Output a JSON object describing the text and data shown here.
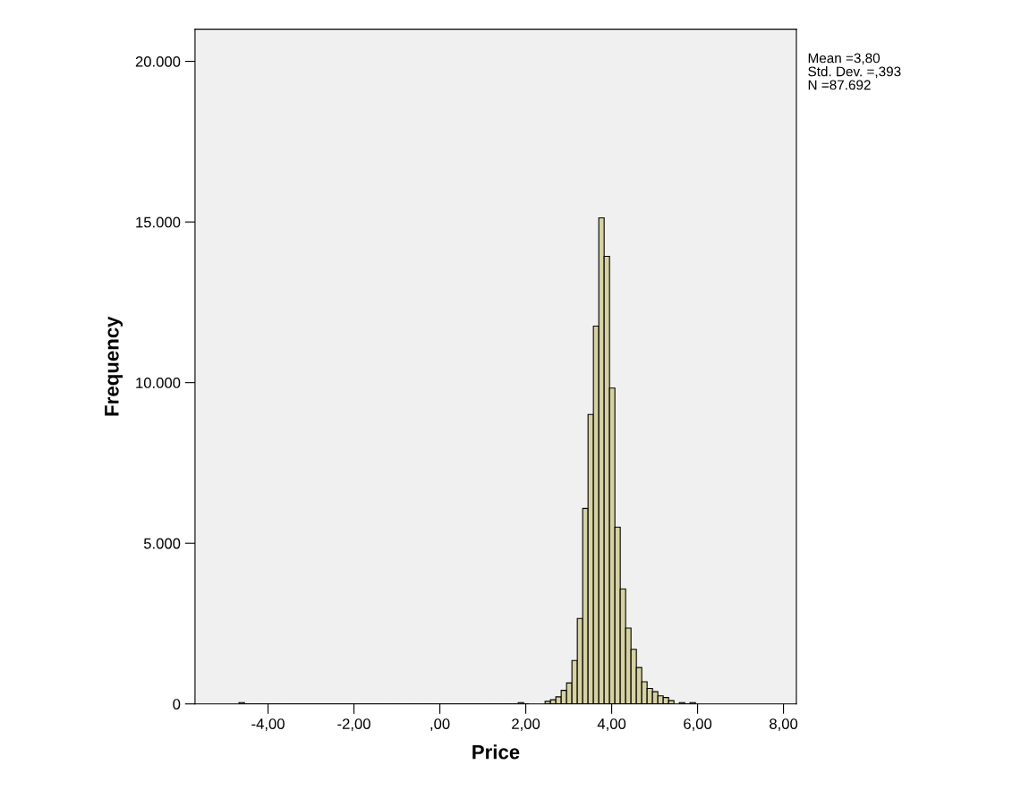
{
  "chart_data": {
    "type": "histogram",
    "xlabel": "Price",
    "ylabel": "Frequency",
    "color": "#d6d1a2",
    "bins": [
      -4.675,
      -4.55,
      -4.425,
      -4.3,
      -4.175,
      -4.05,
      -3.925,
      -3.8,
      -3.675,
      -3.55,
      -3.425,
      -3.3,
      -3.175,
      -3.05,
      -2.925,
      -2.8,
      -2.675,
      -2.55,
      -2.425,
      -2.3,
      -2.175,
      -2.05,
      -1.925,
      -1.8,
      -1.675,
      -1.55,
      -1.425,
      -1.3,
      -1.175,
      -1.05,
      -0.925,
      -0.8,
      -0.675,
      -0.55,
      -0.425,
      -0.3,
      -0.175,
      -0.05,
      0.075,
      0.2,
      0.325,
      0.45,
      0.575,
      0.7,
      0.825,
      0.95,
      1.075,
      1.2,
      1.325,
      1.45,
      1.575,
      1.7,
      1.825,
      1.95,
      2.075,
      2.2,
      2.325,
      2.45,
      2.575,
      2.7,
      2.825,
      2.95,
      3.075,
      3.2,
      3.325,
      3.45,
      3.575,
      3.7,
      3.825,
      3.95,
      4.075,
      4.2,
      4.325,
      4.45,
      4.575,
      4.7,
      4.825,
      4.95,
      5.075,
      5.2,
      5.325,
      5.45,
      5.575,
      5.7,
      5.825,
      5.95
    ],
    "values": [
      40,
      0,
      0,
      0,
      0,
      0,
      0,
      0,
      0,
      0,
      0,
      0,
      0,
      0,
      0,
      0,
      0,
      0,
      0,
      0,
      0,
      0,
      0,
      0,
      0,
      0,
      0,
      0,
      0,
      0,
      0,
      0,
      0,
      0,
      0,
      0,
      0,
      0,
      0,
      0,
      0,
      0,
      0,
      0,
      0,
      0,
      0,
      0,
      0,
      0,
      0,
      0,
      40,
      0,
      null,
      null,
      null,
      80,
      130,
      220,
      420,
      650,
      1350,
      2660,
      6080,
      9010,
      11760,
      15130,
      13930,
      9830,
      5500,
      3580,
      2360,
      1700,
      1130,
      690,
      480,
      380,
      250,
      200,
      100,
      null,
      40,
      0,
      40
    ],
    "xlim": [
      -5.7,
      8.3
    ],
    "xticks": [
      {
        "value": -4,
        "label": "-4,00"
      },
      {
        "value": -2,
        "label": "-2,00"
      },
      {
        "value": 0,
        "label": ",00"
      },
      {
        "value": 2,
        "label": "2,00"
      },
      {
        "value": 4,
        "label": "4,00"
      },
      {
        "value": 6,
        "label": "6,00"
      },
      {
        "value": 8,
        "label": "8,00"
      }
    ],
    "ylim": [
      0,
      21000
    ],
    "yticks": [
      0,
      {
        "value": 5000,
        "label": "5.000"
      },
      {
        "value": 10000,
        "label": "10.000"
      },
      {
        "value": 15000,
        "label": "15.000"
      },
      {
        "value": 20000,
        "label": "20.000"
      }
    ],
    "grid": false,
    "annotations": [
      "Mean =3,80",
      "Std. Dev. =,393",
      "N =87.692"
    ]
  }
}
